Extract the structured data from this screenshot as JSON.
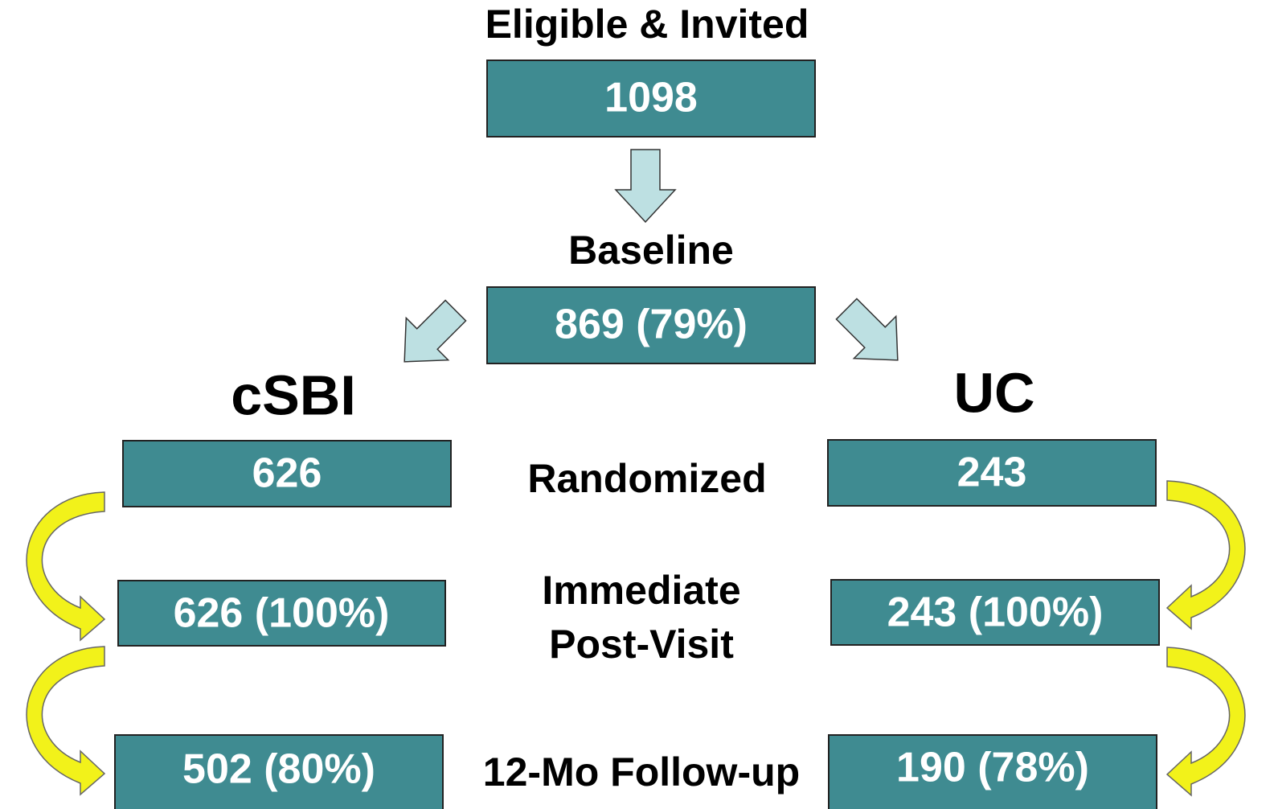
{
  "title": "Eligible & Invited",
  "nodes": {
    "invited": "1098",
    "baseline_label": "Baseline",
    "baseline": "869 (79%)",
    "arm_left": "cSBI",
    "arm_right": "UC",
    "randomized_left": "626",
    "randomized_right": "243",
    "post_left": "626 (100%)",
    "post_right": "243 (100%)",
    "followup_left": "502 (80%)",
    "followup_right": "190 (78%)"
  },
  "stages": {
    "randomized": "Randomized",
    "post_visit": [
      "Immediate",
      "Post-Visit"
    ],
    "followup": "12-Mo Follow-up"
  }
}
